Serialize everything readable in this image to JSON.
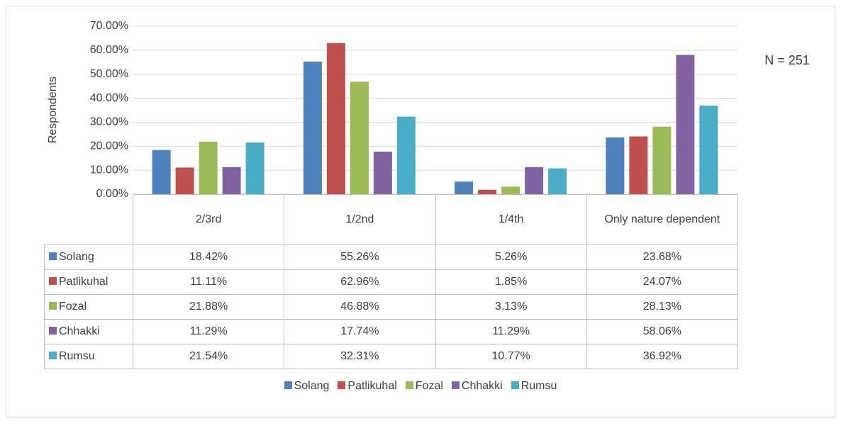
{
  "chart_data": {
    "type": "bar",
    "y_label": "Respondents",
    "annotation": "N = 251",
    "categories": [
      "2/3rd",
      "1/2nd",
      "1/4th",
      "Only nature dependent"
    ],
    "series": [
      {
        "name": "Solang",
        "color": "#4f81bd",
        "values": [
          18.42,
          55.26,
          5.26,
          23.68
        ],
        "value_labels": [
          "18.42%",
          "55.26%",
          "5.26%",
          "23.68%"
        ]
      },
      {
        "name": "Patlikuhal",
        "color": "#c0504d",
        "values": [
          11.11,
          62.96,
          1.85,
          24.07
        ],
        "value_labels": [
          "11.11%",
          "62.96%",
          "1.85%",
          "24.07%"
        ]
      },
      {
        "name": "Fozal",
        "color": "#9bbb59",
        "values": [
          21.88,
          46.88,
          3.13,
          28.13
        ],
        "value_labels": [
          "21.88%",
          "46.88%",
          "3.13%",
          "28.13%"
        ]
      },
      {
        "name": "Chhakki",
        "color": "#8064a2",
        "values": [
          11.29,
          17.74,
          11.29,
          58.06
        ],
        "value_labels": [
          "11.29%",
          "17.74%",
          "11.29%",
          "58.06%"
        ]
      },
      {
        "name": "Rumsu",
        "color": "#4bacc6",
        "values": [
          21.54,
          32.31,
          10.77,
          36.92
        ],
        "value_labels": [
          "21.54%",
          "32.31%",
          "10.77%",
          "36.92%"
        ]
      }
    ],
    "ylim": [
      0,
      70
    ],
    "yticks": [
      {
        "value": 0,
        "label": "0.00%"
      },
      {
        "value": 10,
        "label": "10.00%"
      },
      {
        "value": 20,
        "label": "20.00%"
      },
      {
        "value": 30,
        "label": "30.00%"
      },
      {
        "value": 40,
        "label": "40.00%"
      },
      {
        "value": 50,
        "label": "50.00%"
      },
      {
        "value": 60,
        "label": "60.00%"
      },
      {
        "value": 70,
        "label": "70.00%"
      }
    ],
    "grid": true
  }
}
